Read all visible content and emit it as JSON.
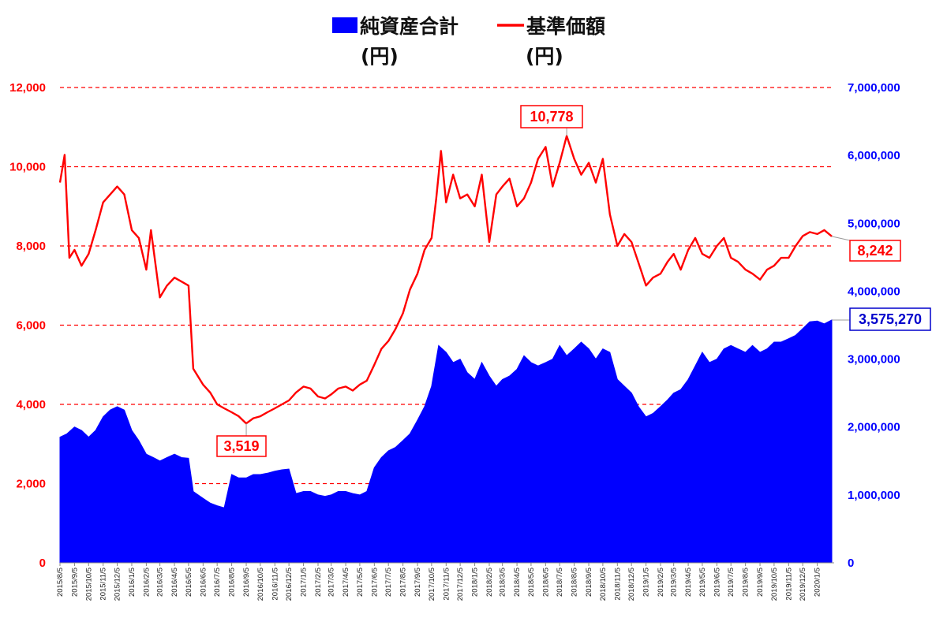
{
  "chart_data": {
    "type": "line",
    "title": "",
    "legend": {
      "placement": "top",
      "items": [
        {
          "label": "純資産合計",
          "unit": "(円)",
          "kind": "area",
          "color": "#0000ff"
        },
        {
          "label": "基準価額",
          "unit": "(円)",
          "kind": "line",
          "color": "#ff0000"
        }
      ]
    },
    "x_ticks": [
      "2015/8/5",
      "2015/9/5",
      "2015/10/5",
      "2015/11/5",
      "2015/12/5",
      "2016/1/5",
      "2016/2/5",
      "2016/3/5",
      "2016/4/5",
      "2016/5/5",
      "2016/6/5",
      "2016/7/5",
      "2016/8/5",
      "2016/9/5",
      "2016/10/5",
      "2016/11/5",
      "2016/12/5",
      "2017/1/5",
      "2017/2/5",
      "2017/3/5",
      "2017/4/5",
      "2017/5/5",
      "2017/6/5",
      "2017/7/5",
      "2017/8/5",
      "2017/9/5",
      "2017/10/5",
      "2017/11/5",
      "2017/12/5",
      "2018/1/5",
      "2018/2/5",
      "2018/3/5",
      "2018/4/5",
      "2018/5/5",
      "2018/6/5",
      "2018/7/5",
      "2018/8/5",
      "2018/9/5",
      "2018/10/5",
      "2018/11/5",
      "2018/12/5",
      "2019/1/5",
      "2019/2/5",
      "2019/3/5",
      "2019/4/5",
      "2019/5/5",
      "2019/6/5",
      "2019/7/5",
      "2019/8/5",
      "2019/9/5",
      "2019/10/5",
      "2019/11/5",
      "2019/12/5",
      "2020/1/5"
    ],
    "y_left": {
      "ticks": [
        "0",
        "2,000",
        "4,000",
        "6,000",
        "8,000",
        "10,000",
        "12,000"
      ],
      "range": [
        0,
        12000
      ]
    },
    "y_right": {
      "ticks": [
        "0",
        "1,000,000",
        "2,000,000",
        "3,000,000",
        "4,000,000",
        "5,000,000",
        "6,000,000",
        "7,000,000"
      ],
      "range": [
        0,
        7000000
      ]
    },
    "grid": "dashed horizontal lines at left-axis ticks",
    "series": [
      {
        "name": "基準価額",
        "axis": "left",
        "color": "#ff0000",
        "x": [
          "2015/8/5",
          "2015/8/15",
          "2015/8/25",
          "2015/9/5",
          "2015/9/20",
          "2015/10/5",
          "2015/10/20",
          "2015/11/5",
          "2015/11/20",
          "2015/12/5",
          "2015/12/20",
          "2016/1/5",
          "2016/1/20",
          "2016/2/5",
          "2016/2/15",
          "2016/3/5",
          "2016/3/20",
          "2016/4/5",
          "2016/4/20",
          "2016/5/5",
          "2016/5/15",
          "2016/6/5",
          "2016/6/20",
          "2016/7/5",
          "2016/7/20",
          "2016/8/5",
          "2016/8/20",
          "2016/9/5",
          "2016/9/20",
          "2016/10/5",
          "2016/10/20",
          "2016/11/5",
          "2016/11/20",
          "2016/12/5",
          "2016/12/20",
          "2017/1/5",
          "2017/1/20",
          "2017/2/5",
          "2017/2/20",
          "2017/3/5",
          "2017/3/20",
          "2017/4/5",
          "2017/4/20",
          "2017/5/5",
          "2017/5/20",
          "2017/6/5",
          "2017/6/20",
          "2017/7/5",
          "2017/7/20",
          "2017/8/5",
          "2017/8/20",
          "2017/9/5",
          "2017/9/20",
          "2017/10/5",
          "2017/10/15",
          "2017/10/25",
          "2017/11/5",
          "2017/11/20",
          "2017/12/5",
          "2017/12/20",
          "2018/1/5",
          "2018/1/20",
          "2018/2/5",
          "2018/2/20",
          "2018/3/5",
          "2018/3/20",
          "2018/4/5",
          "2018/4/20",
          "2018/5/5",
          "2018/5/20",
          "2018/6/5",
          "2018/6/20",
          "2018/7/5",
          "2018/7/20",
          "2018/8/5",
          "2018/8/20",
          "2018/9/5",
          "2018/9/20",
          "2018/10/5",
          "2018/10/20",
          "2018/11/5",
          "2018/11/20",
          "2018/12/5",
          "2018/12/25",
          "2019/1/5",
          "2019/1/20",
          "2019/2/5",
          "2019/2/20",
          "2019/3/5",
          "2019/3/20",
          "2019/4/5",
          "2019/4/20",
          "2019/5/5",
          "2019/5/20",
          "2019/6/5",
          "2019/6/20",
          "2019/7/5",
          "2019/7/20",
          "2019/8/5",
          "2019/8/20",
          "2019/9/5",
          "2019/9/20",
          "2019/10/5",
          "2019/10/20",
          "2019/11/5",
          "2019/11/20",
          "2019/12/5",
          "2019/12/20",
          "2020/1/5",
          "2020/1/20",
          "2020/2/5"
        ],
        "values": [
          9600,
          10300,
          7700,
          7900,
          7500,
          7800,
          8400,
          9100,
          9300,
          9500,
          9300,
          8400,
          8200,
          7400,
          8400,
          6700,
          7000,
          7200,
          7100,
          7000,
          4900,
          4500,
          4300,
          4000,
          3900,
          3800,
          3700,
          3519,
          3650,
          3700,
          3800,
          3900,
          4000,
          4100,
          4300,
          4450,
          4400,
          4200,
          4150,
          4250,
          4400,
          4450,
          4350,
          4500,
          4600,
          5000,
          5400,
          5600,
          5900,
          6300,
          6900,
          7300,
          7900,
          8200,
          9200,
          10400,
          9100,
          9800,
          9200,
          9300,
          9000,
          9800,
          8100,
          9300,
          9500,
          9700,
          9000,
          9200,
          9600,
          10200,
          10500,
          9500,
          10100,
          10778,
          10200,
          9800,
          10100,
          9600,
          10200,
          8800,
          8000,
          8300,
          8100,
          7400,
          7000,
          7200,
          7300,
          7600,
          7800,
          7400,
          7900,
          8200,
          7800,
          7700,
          8000,
          8200,
          7700,
          7600,
          7400,
          7300,
          7150,
          7400,
          7500,
          7700,
          7700,
          8000,
          8250,
          8350,
          8300,
          8400,
          8242
        ]
      },
      {
        "name": "純資産合計",
        "axis": "right",
        "color": "#0000ff",
        "x": [
          "2015/8/5",
          "2015/8/20",
          "2015/9/5",
          "2015/9/20",
          "2015/10/5",
          "2015/10/20",
          "2015/11/5",
          "2015/11/20",
          "2015/12/5",
          "2015/12/20",
          "2016/1/5",
          "2016/1/20",
          "2016/2/5",
          "2016/2/20",
          "2016/3/5",
          "2016/3/20",
          "2016/4/5",
          "2016/4/20",
          "2016/5/5",
          "2016/5/15",
          "2016/6/5",
          "2016/6/20",
          "2016/7/5",
          "2016/7/20",
          "2016/8/5",
          "2016/8/20",
          "2016/9/5",
          "2016/9/20",
          "2016/10/5",
          "2016/10/20",
          "2016/11/5",
          "2016/11/20",
          "2016/12/5",
          "2016/12/20",
          "2017/1/5",
          "2017/1/20",
          "2017/2/5",
          "2017/2/20",
          "2017/3/5",
          "2017/3/20",
          "2017/4/5",
          "2017/4/20",
          "2017/5/5",
          "2017/5/20",
          "2017/6/5",
          "2017/6/20",
          "2017/7/5",
          "2017/7/20",
          "2017/8/5",
          "2017/8/20",
          "2017/9/5",
          "2017/9/20",
          "2017/10/5",
          "2017/10/20",
          "2017/11/5",
          "2017/11/20",
          "2017/12/5",
          "2017/12/20",
          "2018/1/5",
          "2018/1/20",
          "2018/2/5",
          "2018/2/20",
          "2018/3/5",
          "2018/3/20",
          "2018/4/5",
          "2018/4/20",
          "2018/5/5",
          "2018/5/20",
          "2018/6/5",
          "2018/6/20",
          "2018/7/5",
          "2018/7/20",
          "2018/8/5",
          "2018/8/20",
          "2018/9/5",
          "2018/9/20",
          "2018/10/5",
          "2018/10/20",
          "2018/11/5",
          "2018/11/20",
          "2018/12/5",
          "2018/12/20",
          "2019/1/5",
          "2019/1/20",
          "2019/2/5",
          "2019/2/20",
          "2019/3/5",
          "2019/3/20",
          "2019/4/5",
          "2019/4/20",
          "2019/5/5",
          "2019/5/20",
          "2019/6/5",
          "2019/6/20",
          "2019/7/5",
          "2019/7/20",
          "2019/8/5",
          "2019/8/20",
          "2019/9/5",
          "2019/9/20",
          "2019/10/5",
          "2019/10/20",
          "2019/11/5",
          "2019/11/20",
          "2019/12/5",
          "2019/12/20",
          "2020/1/5",
          "2020/1/20",
          "2020/2/5"
        ],
        "values": [
          1850,
          1900,
          2000,
          1950,
          1850,
          1950,
          2150,
          2250,
          2300,
          2250,
          1950,
          1800,
          1600,
          1550,
          1500,
          1550,
          1600,
          1550,
          1540,
          1050,
          950,
          880,
          840,
          810,
          1300,
          1250,
          1250,
          1300,
          1300,
          1320,
          1350,
          1370,
          1380,
          1020,
          1050,
          1050,
          1000,
          980,
          1000,
          1050,
          1050,
          1020,
          1000,
          1050,
          1400,
          1550,
          1650,
          1700,
          1800,
          1900,
          2100,
          2300,
          2600,
          3200,
          3100,
          2950,
          3000,
          2800,
          2700,
          2950,
          2750,
          2600,
          2700,
          2750,
          2850,
          3050,
          2950,
          2900,
          2950,
          3000,
          3200,
          3050,
          3150,
          3250,
          3150,
          3000,
          3150,
          3100,
          2700,
          2600,
          2500,
          2300,
          2150,
          2200,
          2300,
          2400,
          2500,
          2550,
          2700,
          2900,
          3100,
          2950,
          3000,
          3150,
          3200,
          3150,
          3100,
          3200,
          3100,
          3150,
          3250,
          3250,
          3300,
          3350,
          3450,
          3550,
          3560,
          3520,
          3575
        ]
      }
    ],
    "annotations": [
      {
        "text": "10,778",
        "series": "基準価額",
        "x": "2018/7/20",
        "y": 10778,
        "color": "#ff0000"
      },
      {
        "text": "3,519",
        "series": "基準価額",
        "x": "2016/9/5",
        "y": 3519,
        "color": "#ff0000"
      },
      {
        "text": "8,242",
        "series": "基準価額",
        "x": "2020/2/5",
        "y": 8242,
        "color": "#ff0000"
      },
      {
        "text": "3,575,270",
        "series": "純資産合計",
        "x": "2020/2/5",
        "y": 3575270,
        "color": "#0000cc"
      }
    ]
  }
}
